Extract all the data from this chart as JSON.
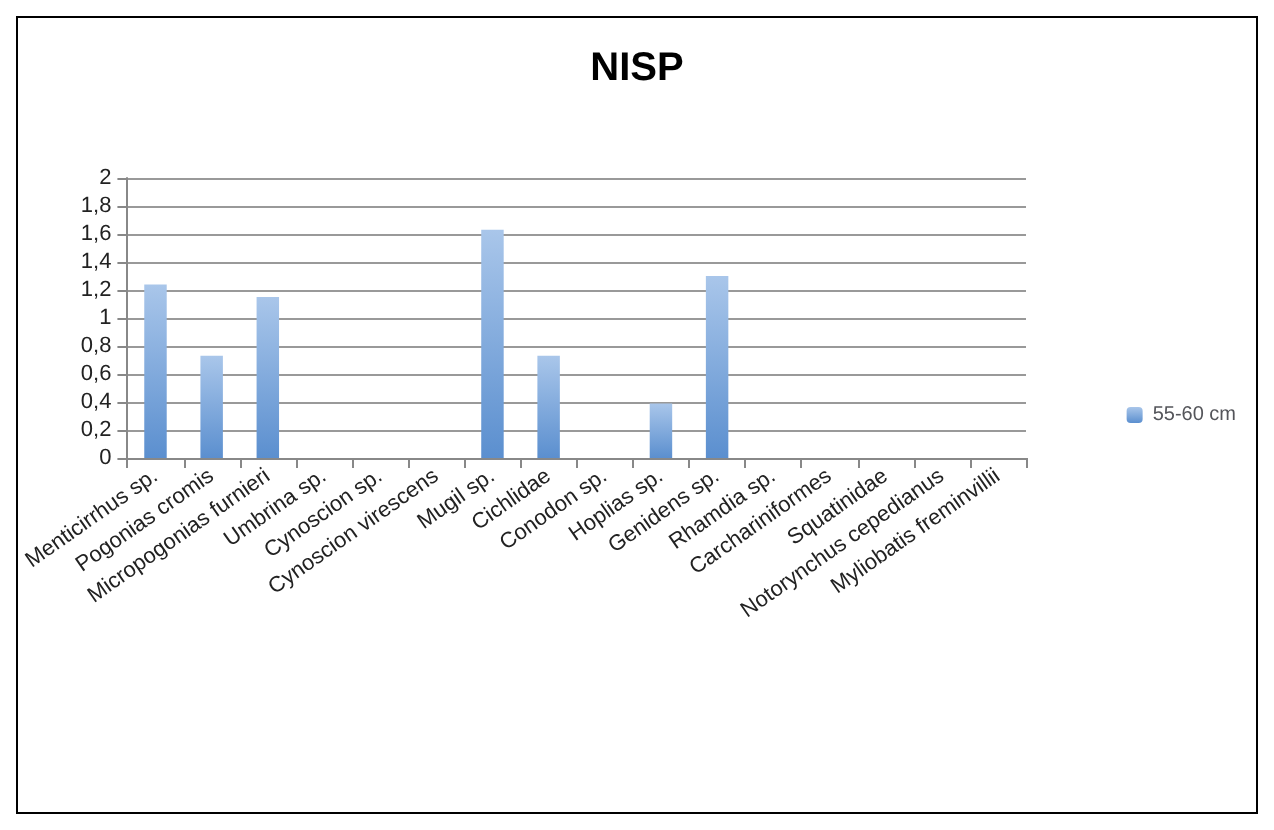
{
  "chart_data": {
    "type": "bar",
    "title": "NISP",
    "categories": [
      "Menticirrhus sp.",
      "Pogonias cromis",
      "Micropogonias furnieri",
      "Umbrina sp.",
      "Cynoscion sp.",
      "Cynoscion virescens",
      "Mugil sp.",
      "Cichlidae",
      "Conodon sp.",
      "Hoplias sp.",
      "Genidens sp.",
      "Rhamdia sp.",
      "Carchariniformes",
      "Squatinidae",
      "Notorynchus cepedianus",
      "Myliobatis freminvillii"
    ],
    "series": [
      {
        "name": "55-60 cm",
        "color": "#5b8fcf",
        "values": [
          1.24,
          0.73,
          1.15,
          0,
          0,
          0,
          1.63,
          0.73,
          0,
          0.39,
          1.3,
          0,
          0,
          0,
          0,
          0
        ]
      }
    ],
    "ylim": [
      0,
      2
    ],
    "yticks": [
      0,
      {
        "value": 0.2,
        "label": "0,2"
      },
      {
        "value": 0.4,
        "label": "0,4"
      },
      {
        "value": 0.6,
        "label": "0,6"
      },
      {
        "value": 0.8,
        "label": "0,8"
      },
      1,
      {
        "value": 1.2,
        "label": "1,2"
      },
      {
        "value": 1.4,
        "label": "1,4"
      },
      {
        "value": 1.6,
        "label": "1,6"
      },
      {
        "value": 1.8,
        "label": "1,8"
      },
      2
    ],
    "grid": "y",
    "legend": "right"
  }
}
